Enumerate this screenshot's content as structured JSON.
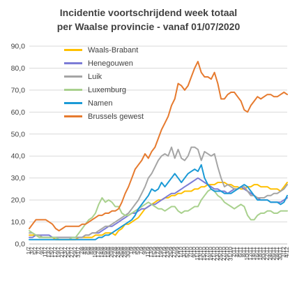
{
  "chart_data": {
    "type": "line",
    "title_line1": "Incidentie voortschrijdend week totaal",
    "title_line2": "per Waalse provincie - vanaf 01/07/2020",
    "ylim": [
      0,
      90
    ],
    "yticks": [
      "0,0",
      "10,0",
      "20,0",
      "30,0",
      "40,0",
      "50,0",
      "60,0",
      "70,0",
      "80,0",
      "90,0"
    ],
    "grid": true,
    "legend_position": "top-left",
    "x": [
      "1/7",
      "3/7",
      "5/7",
      "7/7",
      "9/7",
      "11/7",
      "13/7",
      "15/7",
      "17/7",
      "19/7",
      "21/7",
      "23/7",
      "25/7",
      "27/7",
      "29/7",
      "31/7",
      "2/8",
      "4/8",
      "6/8",
      "8/8",
      "10/8",
      "12/8",
      "14/8",
      "16/8",
      "18/8",
      "20/8",
      "22/8",
      "24/8",
      "26/8",
      "28/8",
      "30/8",
      "1/9",
      "3/9",
      "5/9",
      "7/9",
      "9/9",
      "11/9",
      "13/9",
      "15/9",
      "17/9",
      "19/9",
      "21/9",
      "23/9",
      "25/9",
      "27/9",
      "29/9",
      "1/10",
      "3/10",
      "5/10",
      "7/10",
      "9/10",
      "11/10",
      "13/10",
      "15/10",
      "17/10",
      "19/10",
      "21/10",
      "23/10",
      "25/10",
      "27/10",
      "29/10",
      "31/10",
      "2/11",
      "4/11",
      "6/11",
      "8/11",
      "10/11",
      "12/11",
      "14/11",
      "16/11",
      "18/11",
      "20/11",
      "22/11",
      "24/11",
      "26/11",
      "28/11",
      "30/11",
      "2/12",
      "4/12"
    ],
    "series": [
      {
        "name": "Waals-Brabant",
        "color": "#FFC000",
        "values": [
          4,
          4,
          4,
          3,
          3,
          3,
          3,
          3,
          2,
          2,
          2,
          2,
          2,
          2,
          2,
          3,
          3,
          3,
          3,
          3,
          4,
          4,
          4,
          5,
          5,
          5,
          4,
          6,
          7,
          9,
          9,
          10,
          11,
          12,
          14,
          16,
          17,
          18,
          19,
          20,
          20,
          21,
          21,
          22,
          22,
          23,
          23,
          24,
          24,
          24,
          25,
          25,
          26,
          26,
          27,
          27,
          27,
          28,
          28,
          28,
          27,
          27,
          26,
          26,
          25,
          25,
          26,
          26,
          27,
          27,
          26,
          26,
          26,
          25,
          25,
          25,
          24,
          26,
          28
        ]
      },
      {
        "name": "Henegouwen",
        "color": "#7C7CD6",
        "values": [
          3,
          3,
          4,
          4,
          4,
          4,
          4,
          3,
          3,
          3,
          3,
          3,
          3,
          3,
          3,
          3,
          3,
          4,
          4,
          5,
          5,
          5,
          6,
          7,
          8,
          8,
          9,
          10,
          11,
          12,
          13,
          14,
          14,
          15,
          16,
          16,
          17,
          18,
          18,
          19,
          20,
          21,
          22,
          23,
          23,
          24,
          25,
          26,
          27,
          28,
          29,
          30,
          29,
          28,
          27,
          26,
          25,
          25,
          24,
          24,
          23,
          24,
          25,
          25,
          26,
          25,
          24,
          23,
          22,
          21,
          20,
          20,
          20,
          19,
          19,
          19,
          19,
          20,
          21
        ]
      },
      {
        "name": "Luik",
        "color": "#A5A5A5",
        "values": [
          5,
          5,
          4,
          4,
          3,
          3,
          3,
          3,
          3,
          3,
          3,
          3,
          3,
          3,
          3,
          3,
          3,
          4,
          4,
          5,
          5,
          6,
          7,
          8,
          8,
          9,
          10,
          11,
          12,
          13,
          14,
          16,
          18,
          20,
          23,
          26,
          30,
          32,
          35,
          38,
          40,
          41,
          40,
          44,
          39,
          43,
          39,
          38,
          40,
          44,
          44,
          43,
          38,
          42,
          41,
          40,
          41,
          35,
          30,
          26,
          27,
          26,
          25,
          25,
          26,
          26,
          24,
          22,
          22,
          21,
          21,
          21,
          22,
          22,
          23,
          23,
          24,
          25,
          27
        ]
      },
      {
        "name": "Luxemburg",
        "color": "#A9D18E",
        "values": [
          6,
          5,
          4,
          3,
          3,
          3,
          3,
          3,
          3,
          2,
          2,
          2,
          2,
          3,
          3,
          5,
          7,
          9,
          11,
          12,
          14,
          18,
          21,
          19,
          20,
          19,
          17,
          17,
          14,
          13,
          13,
          14,
          15,
          16,
          17,
          18,
          19,
          18,
          17,
          16,
          16,
          15,
          16,
          17,
          17,
          15,
          14,
          15,
          15,
          16,
          17,
          17,
          20,
          22,
          24,
          25,
          24,
          22,
          21,
          19,
          18,
          17,
          16,
          17,
          18,
          17,
          13,
          11,
          11,
          13,
          14,
          14,
          15,
          15,
          14,
          14,
          15,
          15,
          15
        ]
      },
      {
        "name": "Namen",
        "color": "#1B9AD6",
        "values": [
          2,
          2,
          2,
          2,
          2,
          2,
          2,
          2,
          2,
          2,
          2,
          2,
          2,
          2,
          2,
          2,
          2,
          2,
          2,
          2,
          2,
          3,
          3,
          4,
          4,
          5,
          6,
          7,
          8,
          9,
          10,
          11,
          13,
          16,
          18,
          20,
          22,
          25,
          24,
          25,
          28,
          26,
          28,
          30,
          32,
          30,
          28,
          30,
          32,
          33,
          34,
          33,
          36,
          30,
          27,
          25,
          24,
          24,
          24,
          23,
          23,
          23,
          24,
          25,
          26,
          27,
          26,
          24,
          22,
          20,
          20,
          20,
          20,
          19,
          19,
          19,
          18,
          19,
          22
        ]
      },
      {
        "name": "Brussels gewest",
        "color": "#E67A2E",
        "values": [
          7,
          9,
          11,
          11,
          11,
          11,
          10,
          9,
          7,
          6,
          7,
          8,
          8,
          8,
          8,
          8,
          9,
          9,
          10,
          11,
          12,
          13,
          13,
          14,
          14,
          15,
          15,
          16,
          19,
          23,
          26,
          30,
          34,
          36,
          38,
          41,
          39,
          42,
          44,
          48,
          52,
          55,
          58,
          63,
          66,
          73,
          72,
          70,
          72,
          76,
          80,
          83,
          78,
          76,
          76,
          75,
          78,
          73,
          66,
          66,
          68,
          69,
          69,
          67,
          65,
          61,
          60,
          63,
          65,
          67,
          66,
          67,
          68,
          68,
          67,
          67,
          68,
          69,
          68
        ]
      }
    ]
  }
}
